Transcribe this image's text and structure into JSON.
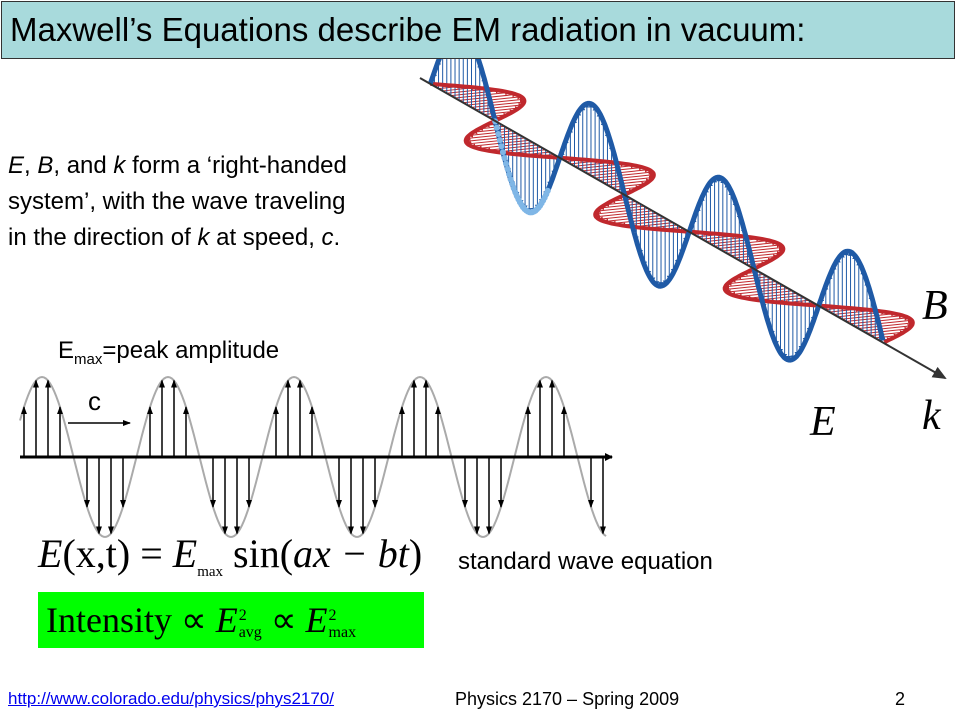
{
  "header": {
    "title": "Maxwell’s Equations describe EM radiation in vacuum:"
  },
  "description": {
    "line1": [
      "E",
      ", ",
      "B",
      ", and ",
      "k",
      " form a ‘right-handed"
    ],
    "line2": "system’, with the wave traveling",
    "line3": [
      "in the direction of ",
      "k",
      " at speed, ",
      "c",
      "."
    ]
  },
  "wave": {
    "amplitude_label": [
      "E",
      "max",
      "=peak amplitude"
    ],
    "speed_label": "c"
  },
  "equation": {
    "parts": [
      "E",
      "(x,t) = ",
      "E",
      "max",
      " sin(",
      "ax − bt",
      ")"
    ],
    "caption": "standard wave equation"
  },
  "intensity": {
    "parts": [
      "Intensity  ∝  ",
      "E",
      "2",
      "avg",
      "  ∝  ",
      "E",
      "2",
      "max"
    ]
  },
  "vectors": {
    "B": "B⃗",
    "E": "E⃗",
    "k": "k⃗"
  },
  "footer": {
    "url": "http://www.colorado.edu/physics/phys2170/",
    "course": "Physics 2170 – Spring 2009",
    "page": "2"
  }
}
